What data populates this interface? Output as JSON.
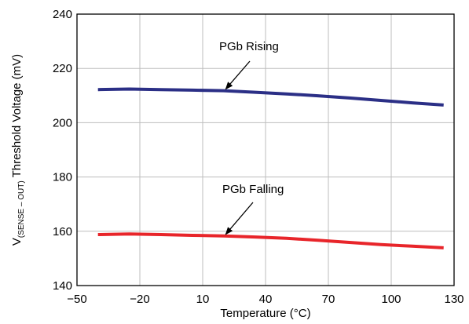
{
  "chart_data": {
    "type": "line",
    "xlabel": "Temperature (°C)",
    "ylabel": {
      "prefix": "V",
      "subscript": "(SENSE – OUT)",
      "suffix": " Threshold Voltage (mV)"
    },
    "xlim": [
      -50,
      130
    ],
    "ylim": [
      140,
      240
    ],
    "xticks": [
      -50,
      -20,
      10,
      40,
      70,
      100,
      130
    ],
    "xtick_labels": [
      "−50",
      "−20",
      "10",
      "40",
      "70",
      "100",
      "130"
    ],
    "yticks": [
      140,
      160,
      180,
      200,
      220,
      240
    ],
    "ytick_labels": [
      "140",
      "160",
      "180",
      "200",
      "220",
      "240"
    ],
    "grid": true,
    "legend": "none",
    "series": [
      {
        "color": "#2b2f86",
        "x": [
          -40,
          -25,
          -10,
          5,
          20,
          35,
          50,
          65,
          80,
          95,
          110,
          125
        ],
        "y": [
          212.2,
          212.4,
          212.2,
          212.0,
          211.8,
          211.2,
          210.6,
          209.9,
          209.1,
          208.2,
          207.3,
          206.5
        ]
      },
      {
        "color": "#e8252a",
        "x": [
          -40,
          -25,
          -10,
          5,
          20,
          35,
          50,
          65,
          80,
          95,
          110,
          125
        ],
        "y": [
          158.8,
          159.0,
          158.8,
          158.5,
          158.3,
          157.9,
          157.4,
          156.7,
          155.9,
          155.1,
          154.5,
          153.9
        ]
      }
    ],
    "annotations": [
      {
        "text": "PGb Rising",
        "target": [
          21,
          211.8
        ]
      },
      {
        "text": "PGb Falling",
        "target": [
          21,
          158.3
        ]
      }
    ]
  }
}
